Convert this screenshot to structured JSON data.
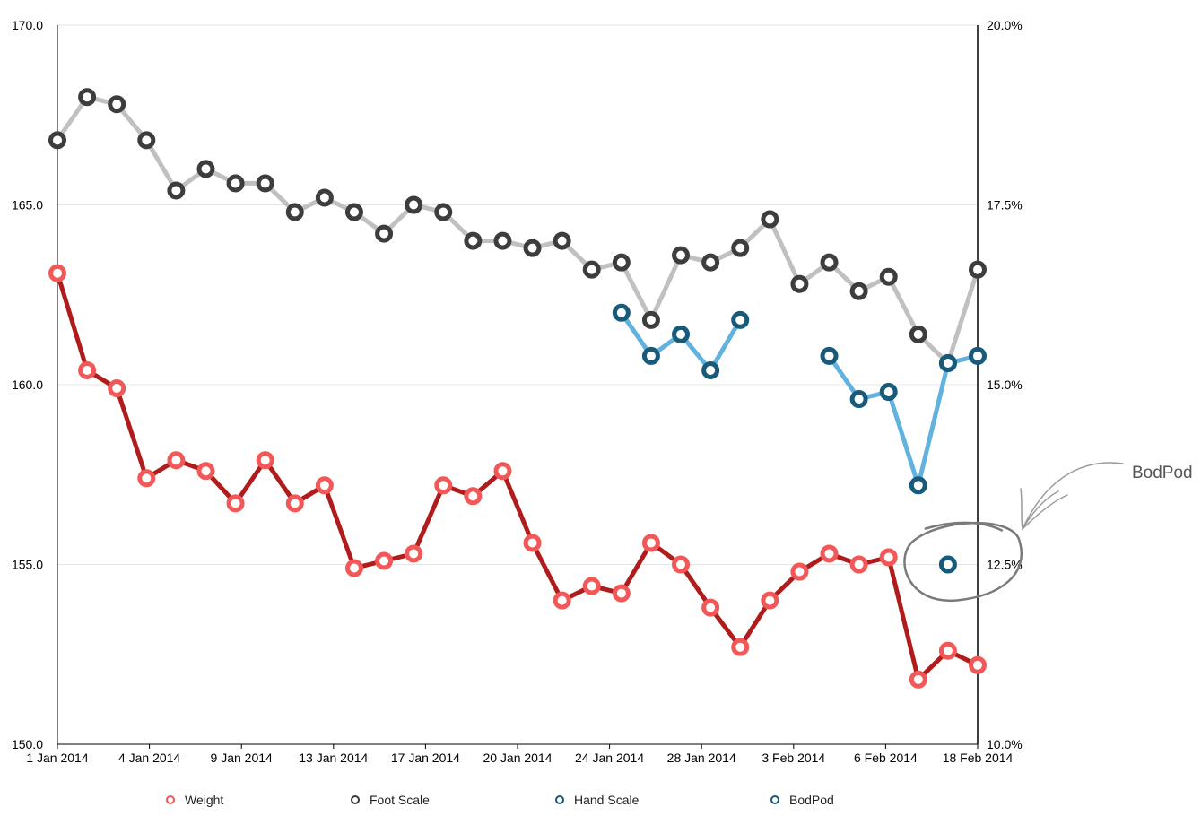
{
  "chart_data": {
    "type": "line",
    "x_ticks": [
      "1 Jan 2014",
      "4 Jan 2014",
      "9 Jan 2014",
      "13 Jan 2014",
      "17 Jan 2014",
      "20 Jan 2014",
      "24 Jan 2014",
      "28 Jan 2014",
      "3 Feb 2014",
      "6 Feb 2014",
      "18 Feb 2014"
    ],
    "y_left": {
      "ticks": [
        "150.0",
        "155.0",
        "160.0",
        "165.0",
        "170.0"
      ],
      "range": [
        150,
        170
      ]
    },
    "y_right": {
      "ticks": [
        "10.0%",
        "12.5%",
        "15.0%",
        "17.5%",
        "20.0%"
      ],
      "range": [
        10,
        20
      ]
    },
    "grid": true,
    "legend_position": "bottom",
    "series": [
      {
        "name": "Weight",
        "axis": "left",
        "line_color": "#b01c1c",
        "marker_color": "#f25858",
        "values": [
          163.1,
          160.4,
          159.9,
          157.4,
          157.9,
          157.6,
          156.7,
          157.9,
          156.7,
          157.2,
          154.9,
          155.1,
          155.3,
          157.2,
          156.9,
          157.6,
          155.6,
          154.0,
          154.4,
          154.2,
          155.6,
          155.0,
          153.8,
          152.7,
          154.0,
          154.8,
          155.3,
          155.0,
          155.2,
          151.8,
          152.6,
          152.2
        ]
      },
      {
        "name": "Foot Scale",
        "axis": "right",
        "line_color": "#c0c0c0",
        "marker_color": "#3d3d3d",
        "values": [
          18.4,
          19.0,
          18.9,
          18.4,
          17.7,
          18.0,
          17.8,
          17.8,
          17.4,
          17.6,
          17.4,
          17.1,
          17.5,
          17.4,
          17.0,
          17.0,
          16.9,
          17.0,
          16.6,
          16.7,
          15.9,
          16.8,
          16.7,
          16.9,
          17.3,
          16.4,
          16.7,
          16.3,
          16.5,
          15.7,
          15.3,
          16.6
        ]
      },
      {
        "name": "Hand Scale",
        "axis": "right",
        "line_color": "#62b2e0",
        "marker_color": "#185a7a",
        "values": [
          null,
          null,
          null,
          null,
          null,
          null,
          null,
          null,
          null,
          null,
          null,
          null,
          null,
          null,
          null,
          null,
          null,
          null,
          null,
          16.0,
          15.4,
          15.7,
          15.2,
          15.9,
          null,
          null,
          15.4,
          14.8,
          14.9,
          13.6,
          15.3,
          15.4
        ]
      },
      {
        "name": "BodPod",
        "axis": "right",
        "line_color": "#185a7a",
        "marker_color": "#185a7a",
        "values": [
          null,
          null,
          null,
          null,
          null,
          null,
          null,
          null,
          null,
          null,
          null,
          null,
          null,
          null,
          null,
          null,
          null,
          null,
          null,
          null,
          null,
          null,
          null,
          null,
          null,
          null,
          null,
          null,
          null,
          null,
          12.5,
          null
        ]
      }
    ],
    "annotations": [
      {
        "text": "BodPod"
      }
    ]
  }
}
